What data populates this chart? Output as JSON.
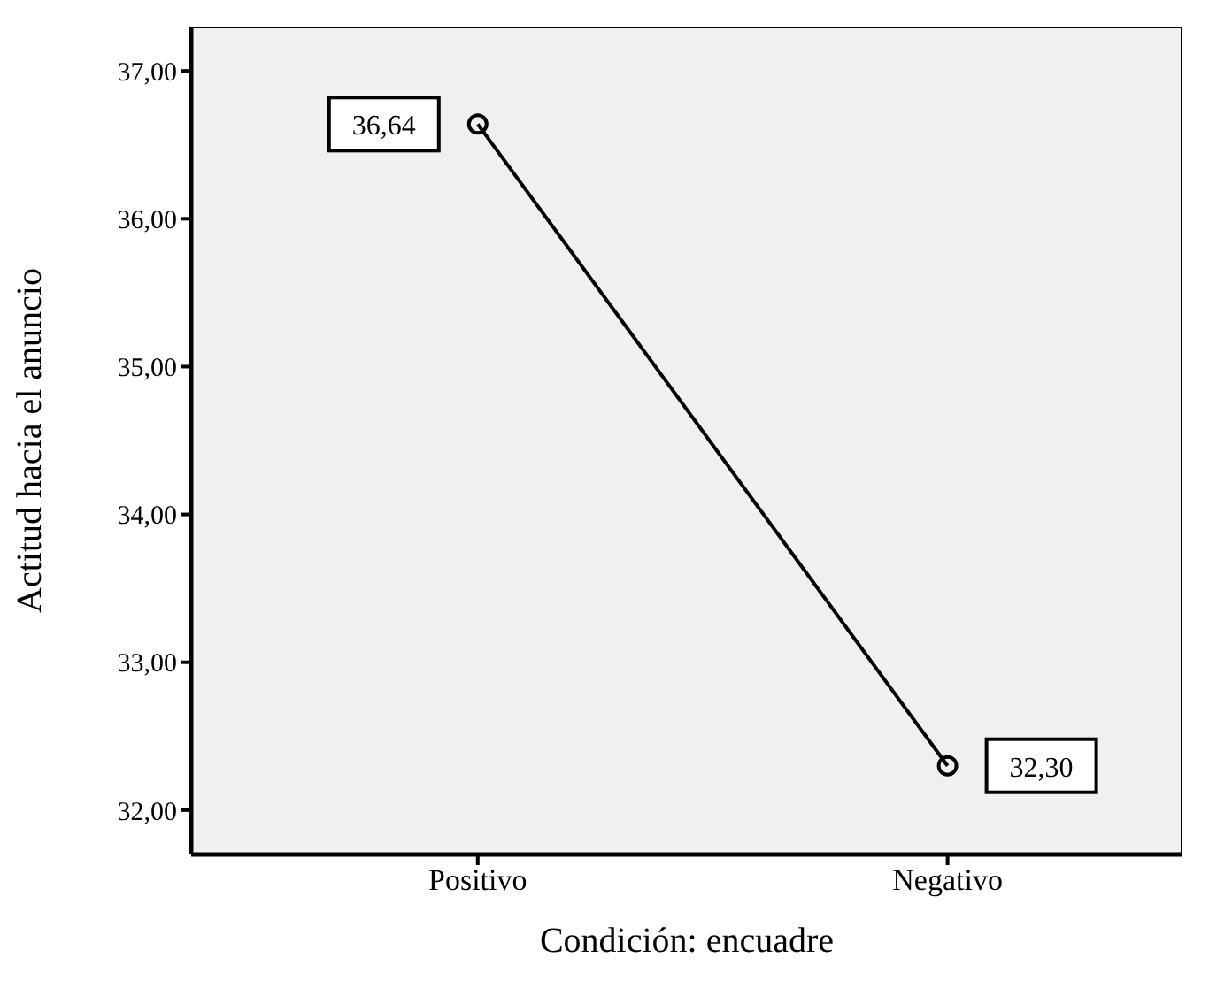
{
  "chart_data": {
    "type": "line",
    "xlabel": "Condición: encuadre",
    "ylabel": "Actitud hacia el anuncio",
    "categories": [
      "Positivo",
      "Negativo"
    ],
    "values": [
      36.64,
      32.3
    ],
    "value_labels": [
      "36,64",
      "32,30"
    ],
    "color": "#000000",
    "marker": "circle",
    "line_style": "solid",
    "ylim": [
      31.7,
      37.3
    ],
    "yticks": [
      {
        "value": 32,
        "label": "32,00"
      },
      {
        "value": 33,
        "label": "33,00"
      },
      {
        "value": 34,
        "label": "34,00"
      },
      {
        "value": 35,
        "label": "35,00"
      },
      {
        "value": 36,
        "label": "36,00"
      },
      {
        "value": 37,
        "label": "37,00"
      }
    ]
  }
}
